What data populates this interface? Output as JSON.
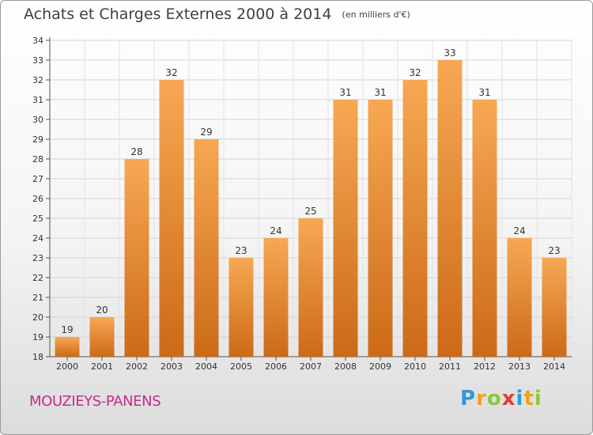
{
  "header": {
    "title": "Achats et Charges Externes 2000 à 2014",
    "subtitle": "(en milliers d'€)"
  },
  "footer": {
    "commune": "MOUZIEYS-PANENS",
    "logo_text": "Proxiti",
    "logo_colors": [
      "#2f9ad6",
      "#f0a020",
      "#8ec63f",
      "#e23b2e",
      "#2f9ad6",
      "#f0a020",
      "#8ec63f"
    ]
  },
  "colors": {
    "bar_top": "#f7a854",
    "bar_bottom": "#cc6a17",
    "commune": "#c32c8b"
  },
  "chart_data": {
    "type": "bar",
    "title": "Achats et Charges Externes 2000 à 2014",
    "subtitle": "(en milliers d'€)",
    "categories": [
      "2000",
      "2001",
      "2002",
      "2003",
      "2004",
      "2005",
      "2006",
      "2007",
      "2008",
      "2009",
      "2010",
      "2011",
      "2012",
      "2013",
      "2014"
    ],
    "values": [
      19,
      20,
      28,
      32,
      29,
      23,
      24,
      25,
      31,
      31,
      32,
      33,
      31,
      24,
      23
    ],
    "ylim": [
      18,
      34
    ],
    "yticks": [
      18,
      19,
      20,
      21,
      22,
      23,
      24,
      25,
      26,
      27,
      28,
      29,
      30,
      31,
      32,
      33,
      34
    ],
    "grid": true,
    "legend": "none"
  }
}
